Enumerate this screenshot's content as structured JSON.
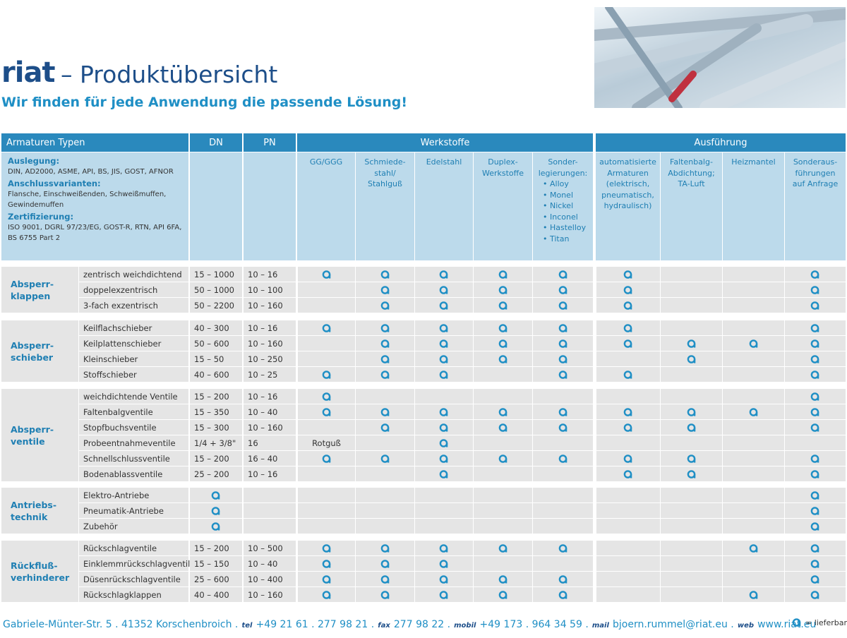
{
  "header": {
    "logo": "riat",
    "title": "– Produktübersicht",
    "subtitle": "Wir finden für jede Anwendung die passende Lösung!"
  },
  "table": {
    "head": {
      "types": "Armaturen Typen",
      "dn": "DN",
      "pn": "PN",
      "materials": "Werkstoffe",
      "execution": "Ausführung"
    },
    "info": [
      {
        "label": "Auslegung:",
        "text": "DIN, AD2000, ASME, API, BS, JIS, GOST, AFNOR"
      },
      {
        "label": "Anschlussvarianten:",
        "text": "Flansche, Einschweißenden, Schweißmuffen, Gewindemuffen"
      },
      {
        "label": "Zertifizierung:",
        "text": "ISO 9001, DGRL 97/23/EG, GOST-R, RTN, API 6FA, BS 6755 Part 2"
      }
    ],
    "columns": [
      {
        "label": "GG/GGG"
      },
      {
        "label": "Schmiede-\nstahl/\nStahlguß"
      },
      {
        "label": "Edelstahl"
      },
      {
        "label": "Duplex-\nWerkstoffe"
      },
      {
        "label": "Sonder-\nlegierungen:",
        "items": [
          "• Alloy",
          "• Monel",
          "• Nickel",
          "• Inconel",
          "• Hastelloy",
          "• Titan"
        ]
      },
      {
        "label": "automatisierte\nArmaturen\n(elektrisch,\npneumatisch,\nhydraulisch)"
      },
      {
        "label": "Faltenbalg-\nAbdichtung;\nTA-Luft"
      },
      {
        "label": "Heizmantel"
      },
      {
        "label": "Sonderaus-\nführungen\nauf Anfrage"
      }
    ],
    "groups": [
      {
        "name": "Absperr-\nklappen",
        "rows": [
          {
            "type": "zentrisch weichdichtend",
            "dn": "15 – 1000",
            "pn": "10 – 16",
            "cells": [
              true,
              true,
              true,
              true,
              true,
              true,
              false,
              false,
              true
            ]
          },
          {
            "type": "doppelexzentrisch",
            "dn": "50 – 1000",
            "pn": "10 – 100",
            "cells": [
              false,
              true,
              true,
              true,
              true,
              true,
              false,
              false,
              true
            ]
          },
          {
            "type": "3-fach exzentrisch",
            "dn": "50 – 2200",
            "pn": "10 – 160",
            "cells": [
              false,
              true,
              true,
              true,
              true,
              true,
              false,
              false,
              true
            ]
          }
        ]
      },
      {
        "name": "Absperr-\nschieber",
        "rows": [
          {
            "type": "Keilflachschieber",
            "dn": "40 – 300",
            "pn": "10 – 16",
            "cells": [
              true,
              true,
              true,
              true,
              true,
              true,
              false,
              false,
              true
            ]
          },
          {
            "type": "Keilplattenschieber",
            "dn": "50 – 600",
            "pn": "10 – 160",
            "cells": [
              false,
              true,
              true,
              true,
              true,
              true,
              true,
              true,
              true
            ]
          },
          {
            "type": "Kleinschieber",
            "dn": "15 – 50",
            "pn": "10 – 250",
            "cells": [
              false,
              true,
              true,
              true,
              true,
              false,
              true,
              false,
              true
            ]
          },
          {
            "type": "Stoffschieber",
            "dn": "40 – 600",
            "pn": "10 – 25",
            "cells": [
              true,
              true,
              true,
              false,
              true,
              true,
              false,
              false,
              true
            ]
          }
        ]
      },
      {
        "name": "Absperr-\nventile",
        "rows": [
          {
            "type": "weichdichtende Ventile",
            "dn": "15 – 200",
            "pn": "10 – 16",
            "cells": [
              true,
              false,
              false,
              false,
              false,
              false,
              false,
              false,
              true
            ]
          },
          {
            "type": "Faltenbalgventile",
            "dn": "15 – 350",
            "pn": "10 – 40",
            "cells": [
              true,
              true,
              true,
              true,
              true,
              true,
              true,
              true,
              true
            ]
          },
          {
            "type": "Stopfbuchsventile",
            "dn": "15 – 300",
            "pn": "10 – 160",
            "cells": [
              false,
              true,
              true,
              true,
              true,
              true,
              true,
              false,
              true
            ]
          },
          {
            "type": "Probeentnahmeventile",
            "dn": "1/4 + 3/8\"",
            "pn": "16",
            "cells": [
              "Rotguß",
              false,
              true,
              false,
              false,
              false,
              false,
              false,
              false
            ]
          },
          {
            "type": "Schnellschlussventile",
            "dn": "15 – 200",
            "pn": "16 – 40",
            "cells": [
              true,
              true,
              true,
              true,
              true,
              true,
              true,
              false,
              true
            ]
          },
          {
            "type": "Bodenablassventile",
            "dn": "25 – 200",
            "pn": "10 – 16",
            "cells": [
              false,
              false,
              true,
              false,
              false,
              true,
              true,
              false,
              true
            ]
          }
        ]
      },
      {
        "name": "Antriebs-\ntechnik",
        "rows": [
          {
            "type": "Elektro-Antriebe",
            "dn": true,
            "pn": false,
            "cells": [
              false,
              false,
              false,
              false,
              false,
              false,
              false,
              false,
              true
            ]
          },
          {
            "type": "Pneumatik-Antriebe",
            "dn": true,
            "pn": false,
            "cells": [
              false,
              false,
              false,
              false,
              false,
              false,
              false,
              false,
              true
            ]
          },
          {
            "type": "Zubehör",
            "dn": true,
            "pn": false,
            "cells": [
              false,
              false,
              false,
              false,
              false,
              false,
              false,
              false,
              true
            ]
          }
        ]
      },
      {
        "name": "Rückfluß-\nverhinderer",
        "rows": [
          {
            "type": "Rückschlagventile",
            "dn": "15 – 200",
            "pn": "10 – 500",
            "cells": [
              true,
              true,
              true,
              true,
              true,
              false,
              false,
              true,
              true
            ]
          },
          {
            "type": "Einklemmrückschlagventile",
            "dn": "15 – 150",
            "pn": "10 – 40",
            "cells": [
              true,
              true,
              true,
              false,
              false,
              false,
              false,
              false,
              true
            ]
          },
          {
            "type": "Düsenrückschlagventile",
            "dn": "25 – 600",
            "pn": "10 – 400",
            "cells": [
              true,
              true,
              true,
              true,
              true,
              false,
              false,
              false,
              true
            ]
          },
          {
            "type": "Rückschlagklappen",
            "dn": "40 – 400",
            "pn": "10 – 160",
            "cells": [
              true,
              true,
              true,
              true,
              true,
              false,
              false,
              true,
              true
            ]
          }
        ]
      }
    ]
  },
  "footer": {
    "address": "Gabriele-Münter-Str. 5 . 41352 Korschenbroich .",
    "tel_label": "tel",
    "tel": "+49 21 61 . 277 98 21 .",
    "fax_label": "fax",
    "fax": "277 98 22 .",
    "mobil_label": "mobil",
    "mobil": "+49 173 . 964 34 59 .",
    "mail_label": "mail",
    "mail": "bjoern.rummel@riat.eu .",
    "web_label": "web",
    "web": "www.riat.eu",
    "legend": "= lieferbar"
  }
}
